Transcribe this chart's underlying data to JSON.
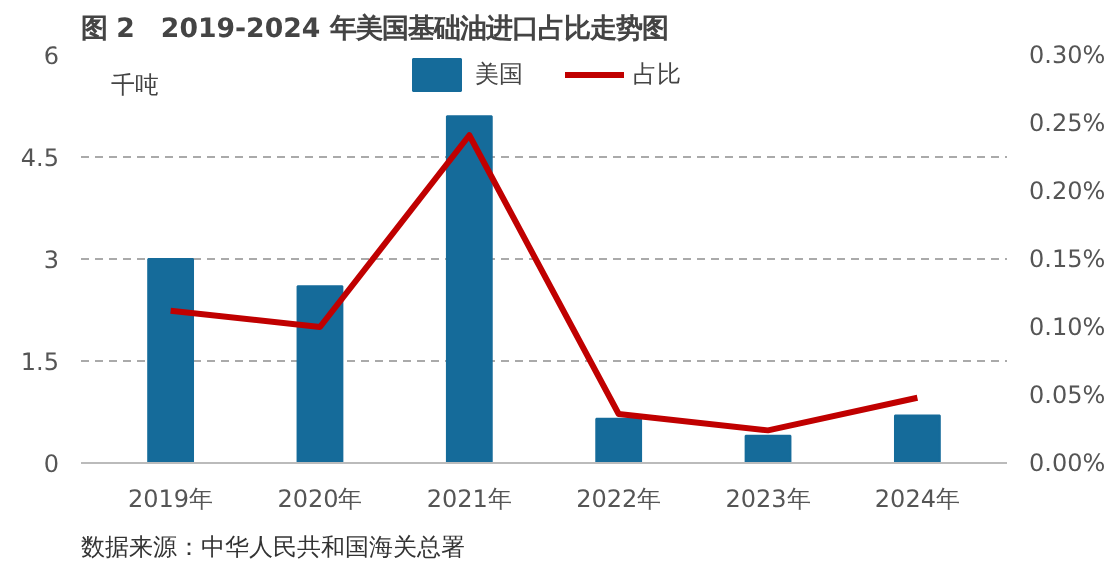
{
  "chart_data": {
    "type": "bar",
    "title": "图 2　2019-2024 年美国基础油进口占比走势图",
    "ylabel": "千吨",
    "categories": [
      "2019年",
      "2020年",
      "2021年",
      "2022年",
      "2023年",
      "2024年"
    ],
    "series": [
      {
        "name": "美国",
        "color": "#156b9a",
        "values": [
          3.0,
          2.6,
          5.1,
          0.65,
          0.4,
          0.7
        ]
      },
      {
        "name": "占比",
        "type": "line",
        "color": "#c00000",
        "axis": "y2",
        "values": [
          0.112,
          0.1,
          0.241,
          0.036,
          0.024,
          0.048
        ]
      }
    ],
    "ylim": [
      0,
      6
    ],
    "yticks": [
      0,
      1.5,
      3,
      4.5,
      6
    ],
    "y2lim": [
      0,
      0.3
    ],
    "y2ticks": [
      {
        "value": 0,
        "label": "0.00%"
      },
      {
        "value": 0.05,
        "label": "0.05%"
      },
      {
        "value": 0.1,
        "label": "0.10%"
      },
      {
        "value": 0.15,
        "label": "0.15%"
      },
      {
        "value": 0.2,
        "label": "0.20%"
      },
      {
        "value": 0.25,
        "label": "0.25%"
      },
      {
        "value": 0.3,
        "label": "0.30%"
      }
    ],
    "grid": "y",
    "legend": "top",
    "line_style": "solid",
    "annotations": [
      "数据来源：中华人民共和国海关总署"
    ]
  }
}
